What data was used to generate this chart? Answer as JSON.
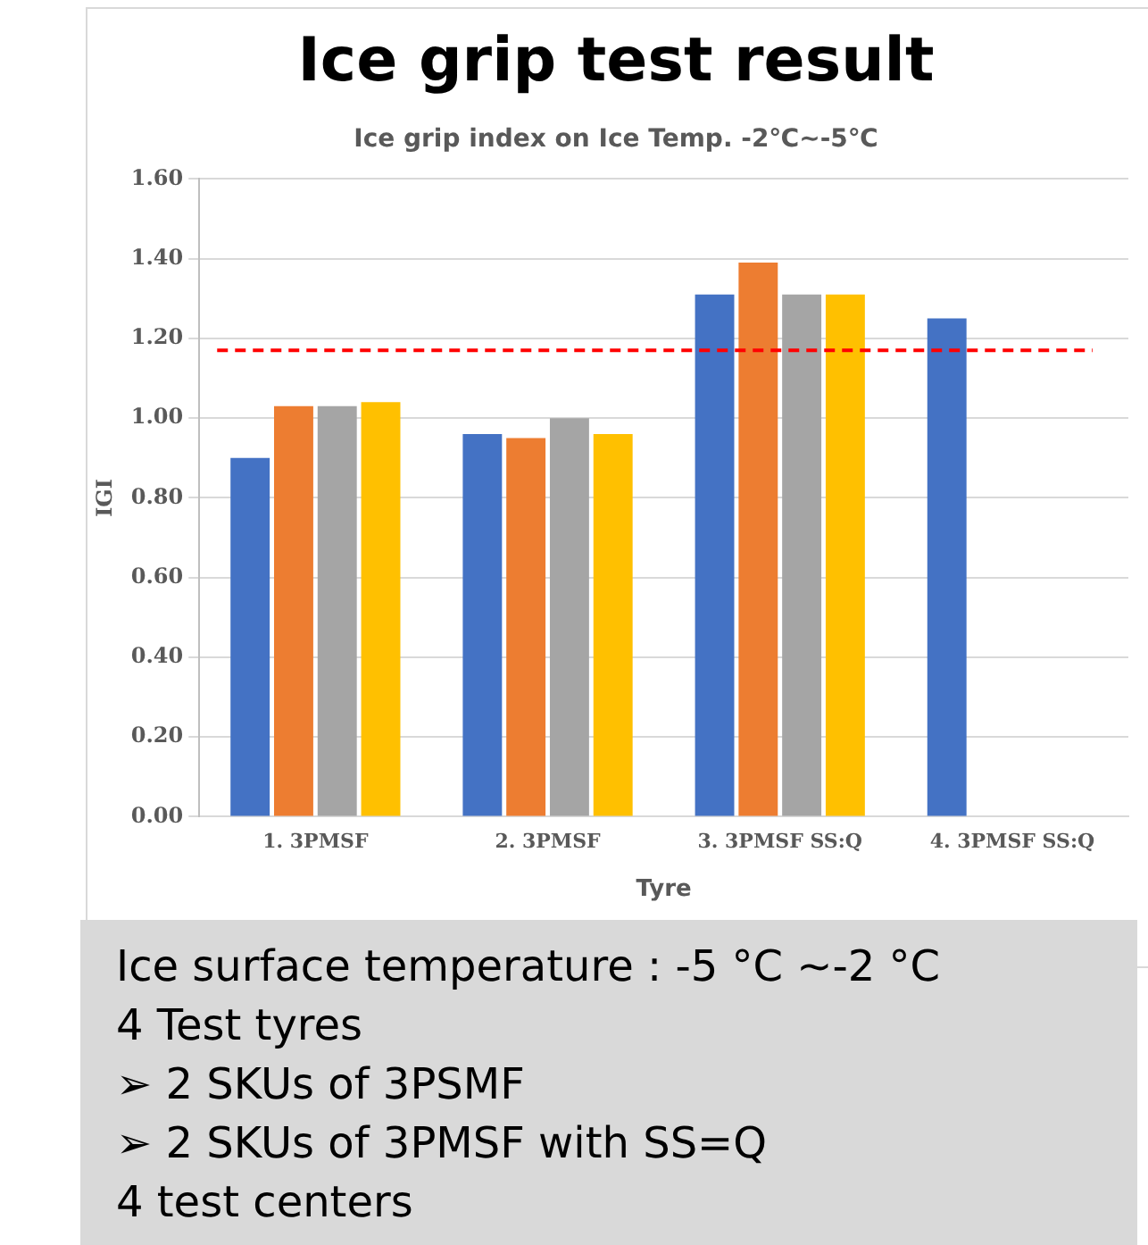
{
  "chart_data": {
    "type": "bar",
    "title": "Ice grip test result",
    "subtitle": "Ice grip index on Ice Temp. -2℃~-5℃",
    "xlabel": "Tyre",
    "ylabel": "IGI",
    "categories": [
      "1. 3PMSF",
      "2. 3PMSF",
      "3. 3PMSF SS:Q",
      "4. 3PMSF SS:Q"
    ],
    "series": [
      {
        "color": "#4472c4",
        "values": [
          0.9,
          0.96,
          1.31,
          1.25
        ]
      },
      {
        "color": "#ed7d31",
        "values": [
          1.03,
          0.95,
          1.39,
          null
        ]
      },
      {
        "color": "#a5a5a5",
        "values": [
          1.03,
          1.0,
          1.31,
          null
        ]
      },
      {
        "color": "#ffc000",
        "values": [
          1.04,
          0.96,
          1.31,
          null
        ]
      }
    ],
    "ylim": [
      0,
      1.6
    ],
    "yticks": [
      {
        "value": 0,
        "label": "0.00"
      },
      {
        "value": 0.2,
        "label": "0.20"
      },
      {
        "value": 0.4,
        "label": "0.40"
      },
      {
        "value": 0.6,
        "label": "0.60"
      },
      {
        "value": 0.8,
        "label": "0.80"
      },
      {
        "value": 1,
        "label": "1.00"
      },
      {
        "value": 1.2,
        "label": "1.20"
      },
      {
        "value": 1.4,
        "label": "1.40"
      },
      {
        "value": 1.6,
        "label": "1.60"
      }
    ],
    "grid": "y",
    "legend": false,
    "ref_lines": [
      {
        "axis": "y",
        "value": 1.17,
        "color": "#ff0000",
        "line_style": "dashed"
      }
    ],
    "annotations": [
      "Ice surface temperature : -5 °C ~-2 °C",
      "4 Test tyres",
      "➢ 2 SKUs of 3PSMF",
      "➢ 2 SKUs of 3PMSF with SS=Q",
      "4 test centers"
    ]
  }
}
